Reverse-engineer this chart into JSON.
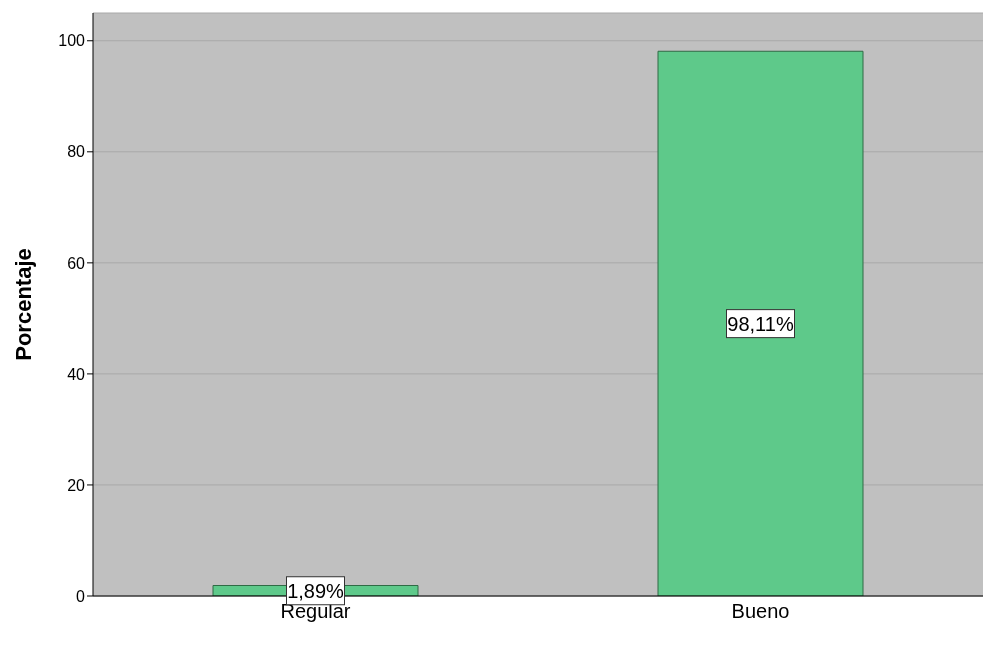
{
  "chart_data": {
    "type": "bar",
    "ylabel": "Porcentaje",
    "categories": [
      "Regular",
      "Bueno"
    ],
    "values": [
      1.89,
      98.11
    ],
    "color": "#5ec98a",
    "value_labels": [
      "1,89%",
      "98,11%"
    ],
    "ylim": [
      0,
      105
    ],
    "yticks": [
      0,
      20,
      40,
      60,
      80,
      100
    ],
    "grid": "y"
  }
}
